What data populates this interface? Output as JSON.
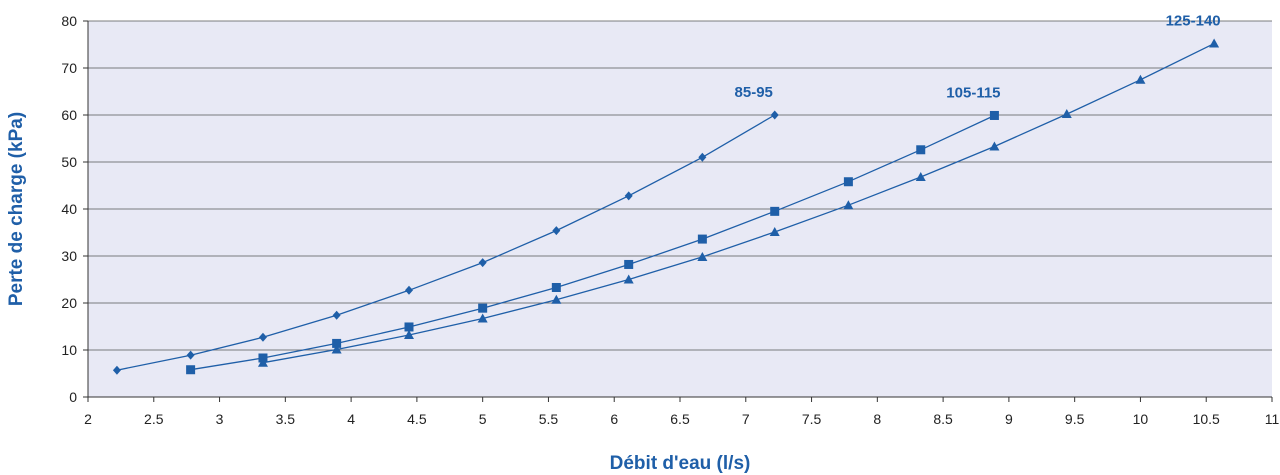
{
  "chart_data": {
    "type": "line",
    "xlabel": "Débit d'eau (l/s)",
    "ylabel": "Perte de charge (kPa)",
    "xlim": [
      2,
      11
    ],
    "ylim": [
      0,
      80
    ],
    "x_ticks": [
      "2",
      "2.5",
      "3",
      "3.5",
      "4",
      "4.5",
      "5",
      "5.5",
      "6",
      "6.5",
      "7",
      "7.5",
      "8",
      "8.5",
      "9",
      "9.5",
      "10",
      "10.5",
      "11"
    ],
    "y_ticks": [
      "0",
      "10",
      "20",
      "30",
      "40",
      "50",
      "60",
      "70",
      "80"
    ],
    "grid": "horizontal",
    "colors": {
      "series": "#1f5fa8",
      "plot_background": "#e8e9f5",
      "grid": "#555555"
    },
    "series": [
      {
        "name": "85-95",
        "marker": "diamond",
        "x": [
          2.22,
          2.78,
          3.33,
          3.89,
          4.44,
          5.0,
          5.56,
          6.11,
          6.67,
          7.22
        ],
        "y": [
          5.7,
          8.9,
          12.7,
          17.4,
          22.7,
          28.6,
          35.4,
          42.8,
          51.0,
          60.0
        ]
      },
      {
        "name": "105-115",
        "marker": "square",
        "x": [
          2.78,
          3.33,
          3.89,
          4.44,
          5.0,
          5.56,
          6.11,
          6.67,
          7.22,
          7.78,
          8.33,
          8.89
        ],
        "y": [
          5.8,
          8.3,
          11.4,
          14.9,
          18.9,
          23.3,
          28.2,
          33.6,
          39.5,
          45.8,
          52.6,
          59.9
        ]
      },
      {
        "name": "125-140",
        "marker": "triangle",
        "x": [
          3.33,
          3.89,
          4.44,
          5.0,
          5.56,
          6.11,
          6.67,
          7.22,
          7.78,
          8.33,
          8.89,
          9.44,
          10.0,
          10.56
        ],
        "y": [
          7.3,
          10.1,
          13.2,
          16.7,
          20.7,
          25.0,
          29.8,
          35.1,
          40.8,
          46.8,
          53.3,
          60.2,
          67.5,
          75.2
        ]
      }
    ]
  }
}
